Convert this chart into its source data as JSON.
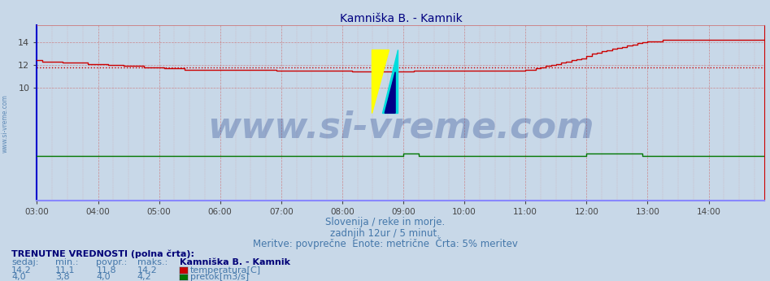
{
  "title": "Kamniška B. - Kamnik",
  "title_color": "#000080",
  "title_fontsize": 10,
  "fig_bg_color": "#c8d8e8",
  "plot_bg_color": "#c8d8e8",
  "xlim_start": 0,
  "xlim_end": 143,
  "ylim": [
    0,
    15.5
  ],
  "yticks": [
    10,
    12,
    14
  ],
  "xtick_labels": [
    "03:00",
    "04:00",
    "05:00",
    "06:00",
    "07:00",
    "08:00",
    "09:00",
    "10:00",
    "11:00",
    "12:00",
    "13:00",
    "14:00"
  ],
  "xtick_positions": [
    0,
    12,
    24,
    36,
    48,
    60,
    72,
    84,
    96,
    108,
    120,
    132
  ],
  "avg_temp": 11.8,
  "temp_color": "#cc0000",
  "flow_color": "#007700",
  "avg_line_color": "#cc0000",
  "grid_color": "#cc6666",
  "axis_left_color": "#0000cc",
  "axis_bottom_color": "#8888ff",
  "axis_right_color": "#cc0000",
  "watermark_text": "www.si-vreme.com",
  "watermark_color": "#1a3a8a",
  "watermark_alpha": 0.3,
  "watermark_fontsize": 32,
  "sub_text1": "Slovenija / reke in morje.",
  "sub_text2": "zadnjih 12ur / 5 minut.",
  "sub_text3": "Meritve: povprečne  Enote: metrične  Črta: 5% meritev",
  "sub_color": "#4477aa",
  "sub_fontsize": 8.5,
  "table_header": "TRENUTNE VREDNOSTI (polna črta):",
  "table_col_headers": [
    "sedaj:",
    "min.:",
    "povpr.:",
    "maks.:",
    "Kamniška B. - Kamnik"
  ],
  "table_rows": [
    [
      "14,2",
      "11,1",
      "11,8",
      "14,2",
      "temperatura[C]",
      "#cc0000"
    ],
    [
      "4,0",
      "3,8",
      "4,0",
      "4,2",
      "pretok[m3/s]",
      "#007700"
    ]
  ],
  "table_color": "#4477aa",
  "table_header_color": "#000077",
  "table_fontsize": 8,
  "sidebar_text": "www.si-vreme.com",
  "sidebar_color": "#4477aa",
  "temp_data": [
    12.4,
    12.3,
    12.3,
    12.3,
    12.3,
    12.2,
    12.2,
    12.2,
    12.2,
    12.2,
    12.1,
    12.1,
    12.1,
    12.1,
    12.0,
    12.0,
    12.0,
    11.9,
    11.9,
    11.9,
    11.9,
    11.8,
    11.8,
    11.8,
    11.8,
    11.7,
    11.7,
    11.7,
    11.7,
    11.6,
    11.6,
    11.6,
    11.6,
    11.6,
    11.6,
    11.6,
    11.6,
    11.6,
    11.6,
    11.6,
    11.6,
    11.6,
    11.6,
    11.6,
    11.6,
    11.6,
    11.6,
    11.5,
    11.5,
    11.5,
    11.5,
    11.5,
    11.5,
    11.5,
    11.5,
    11.5,
    11.5,
    11.5,
    11.5,
    11.5,
    11.5,
    11.5,
    11.4,
    11.4,
    11.4,
    11.4,
    11.4,
    11.4,
    11.4,
    11.4,
    11.4,
    11.4,
    11.4,
    11.4,
    11.5,
    11.5,
    11.5,
    11.5,
    11.5,
    11.5,
    11.5,
    11.5,
    11.5,
    11.5,
    11.5,
    11.5,
    11.5,
    11.5,
    11.5,
    11.5,
    11.5,
    11.5,
    11.5,
    11.5,
    11.5,
    11.5,
    11.6,
    11.6,
    11.7,
    11.8,
    11.9,
    12.0,
    12.1,
    12.2,
    12.3,
    12.4,
    12.5,
    12.6,
    12.8,
    13.0,
    13.1,
    13.2,
    13.3,
    13.4,
    13.5,
    13.6,
    13.7,
    13.8,
    13.9,
    14.0,
    14.1,
    14.1,
    14.1,
    14.2,
    14.2,
    14.2,
    14.2,
    14.2,
    14.2,
    14.2,
    14.2,
    14.2,
    14.2,
    14.2,
    14.2,
    14.2,
    14.2,
    14.2,
    14.2,
    14.2,
    14.2,
    14.2,
    14.2,
    14.2
  ],
  "flow_data": [
    4.0,
    4.0,
    4.0,
    4.0,
    4.0,
    4.0,
    4.0,
    4.0,
    4.0,
    4.0,
    4.0,
    4.0,
    4.0,
    4.0,
    4.0,
    4.0,
    4.0,
    4.0,
    4.0,
    4.0,
    4.0,
    4.0,
    4.0,
    4.0,
    4.0,
    4.0,
    4.0,
    4.0,
    4.0,
    4.0,
    4.0,
    4.0,
    4.0,
    4.0,
    4.0,
    4.0,
    4.0,
    4.0,
    4.0,
    4.0,
    4.0,
    4.0,
    4.0,
    4.0,
    4.0,
    4.0,
    4.0,
    4.0,
    4.0,
    4.0,
    4.0,
    4.0,
    4.0,
    4.0,
    4.0,
    4.0,
    4.0,
    4.0,
    4.0,
    4.0,
    4.0,
    4.0,
    4.0,
    4.0,
    4.0,
    4.0,
    4.0,
    4.0,
    4.0,
    4.0,
    4.0,
    4.0,
    4.2,
    4.2,
    4.2,
    4.0,
    4.0,
    4.0,
    4.0,
    4.0,
    4.0,
    4.0,
    4.0,
    4.0,
    4.0,
    4.0,
    4.0,
    4.0,
    4.0,
    4.0,
    4.0,
    4.0,
    4.0,
    4.0,
    4.0,
    4.0,
    4.0,
    4.0,
    4.0,
    4.0,
    4.0,
    4.0,
    4.0,
    4.0,
    4.0,
    4.0,
    4.0,
    4.0,
    4.2,
    4.2,
    4.2,
    4.2,
    4.2,
    4.2,
    4.2,
    4.2,
    4.2,
    4.2,
    4.2,
    4.0,
    4.0,
    4.0,
    4.0,
    4.0,
    4.0,
    4.0,
    4.0,
    4.0,
    4.0,
    4.0,
    4.0,
    4.0,
    4.0,
    4.0,
    4.0,
    4.0,
    4.0,
    4.0,
    4.0,
    4.0,
    4.0,
    4.0,
    4.0,
    4.0
  ]
}
